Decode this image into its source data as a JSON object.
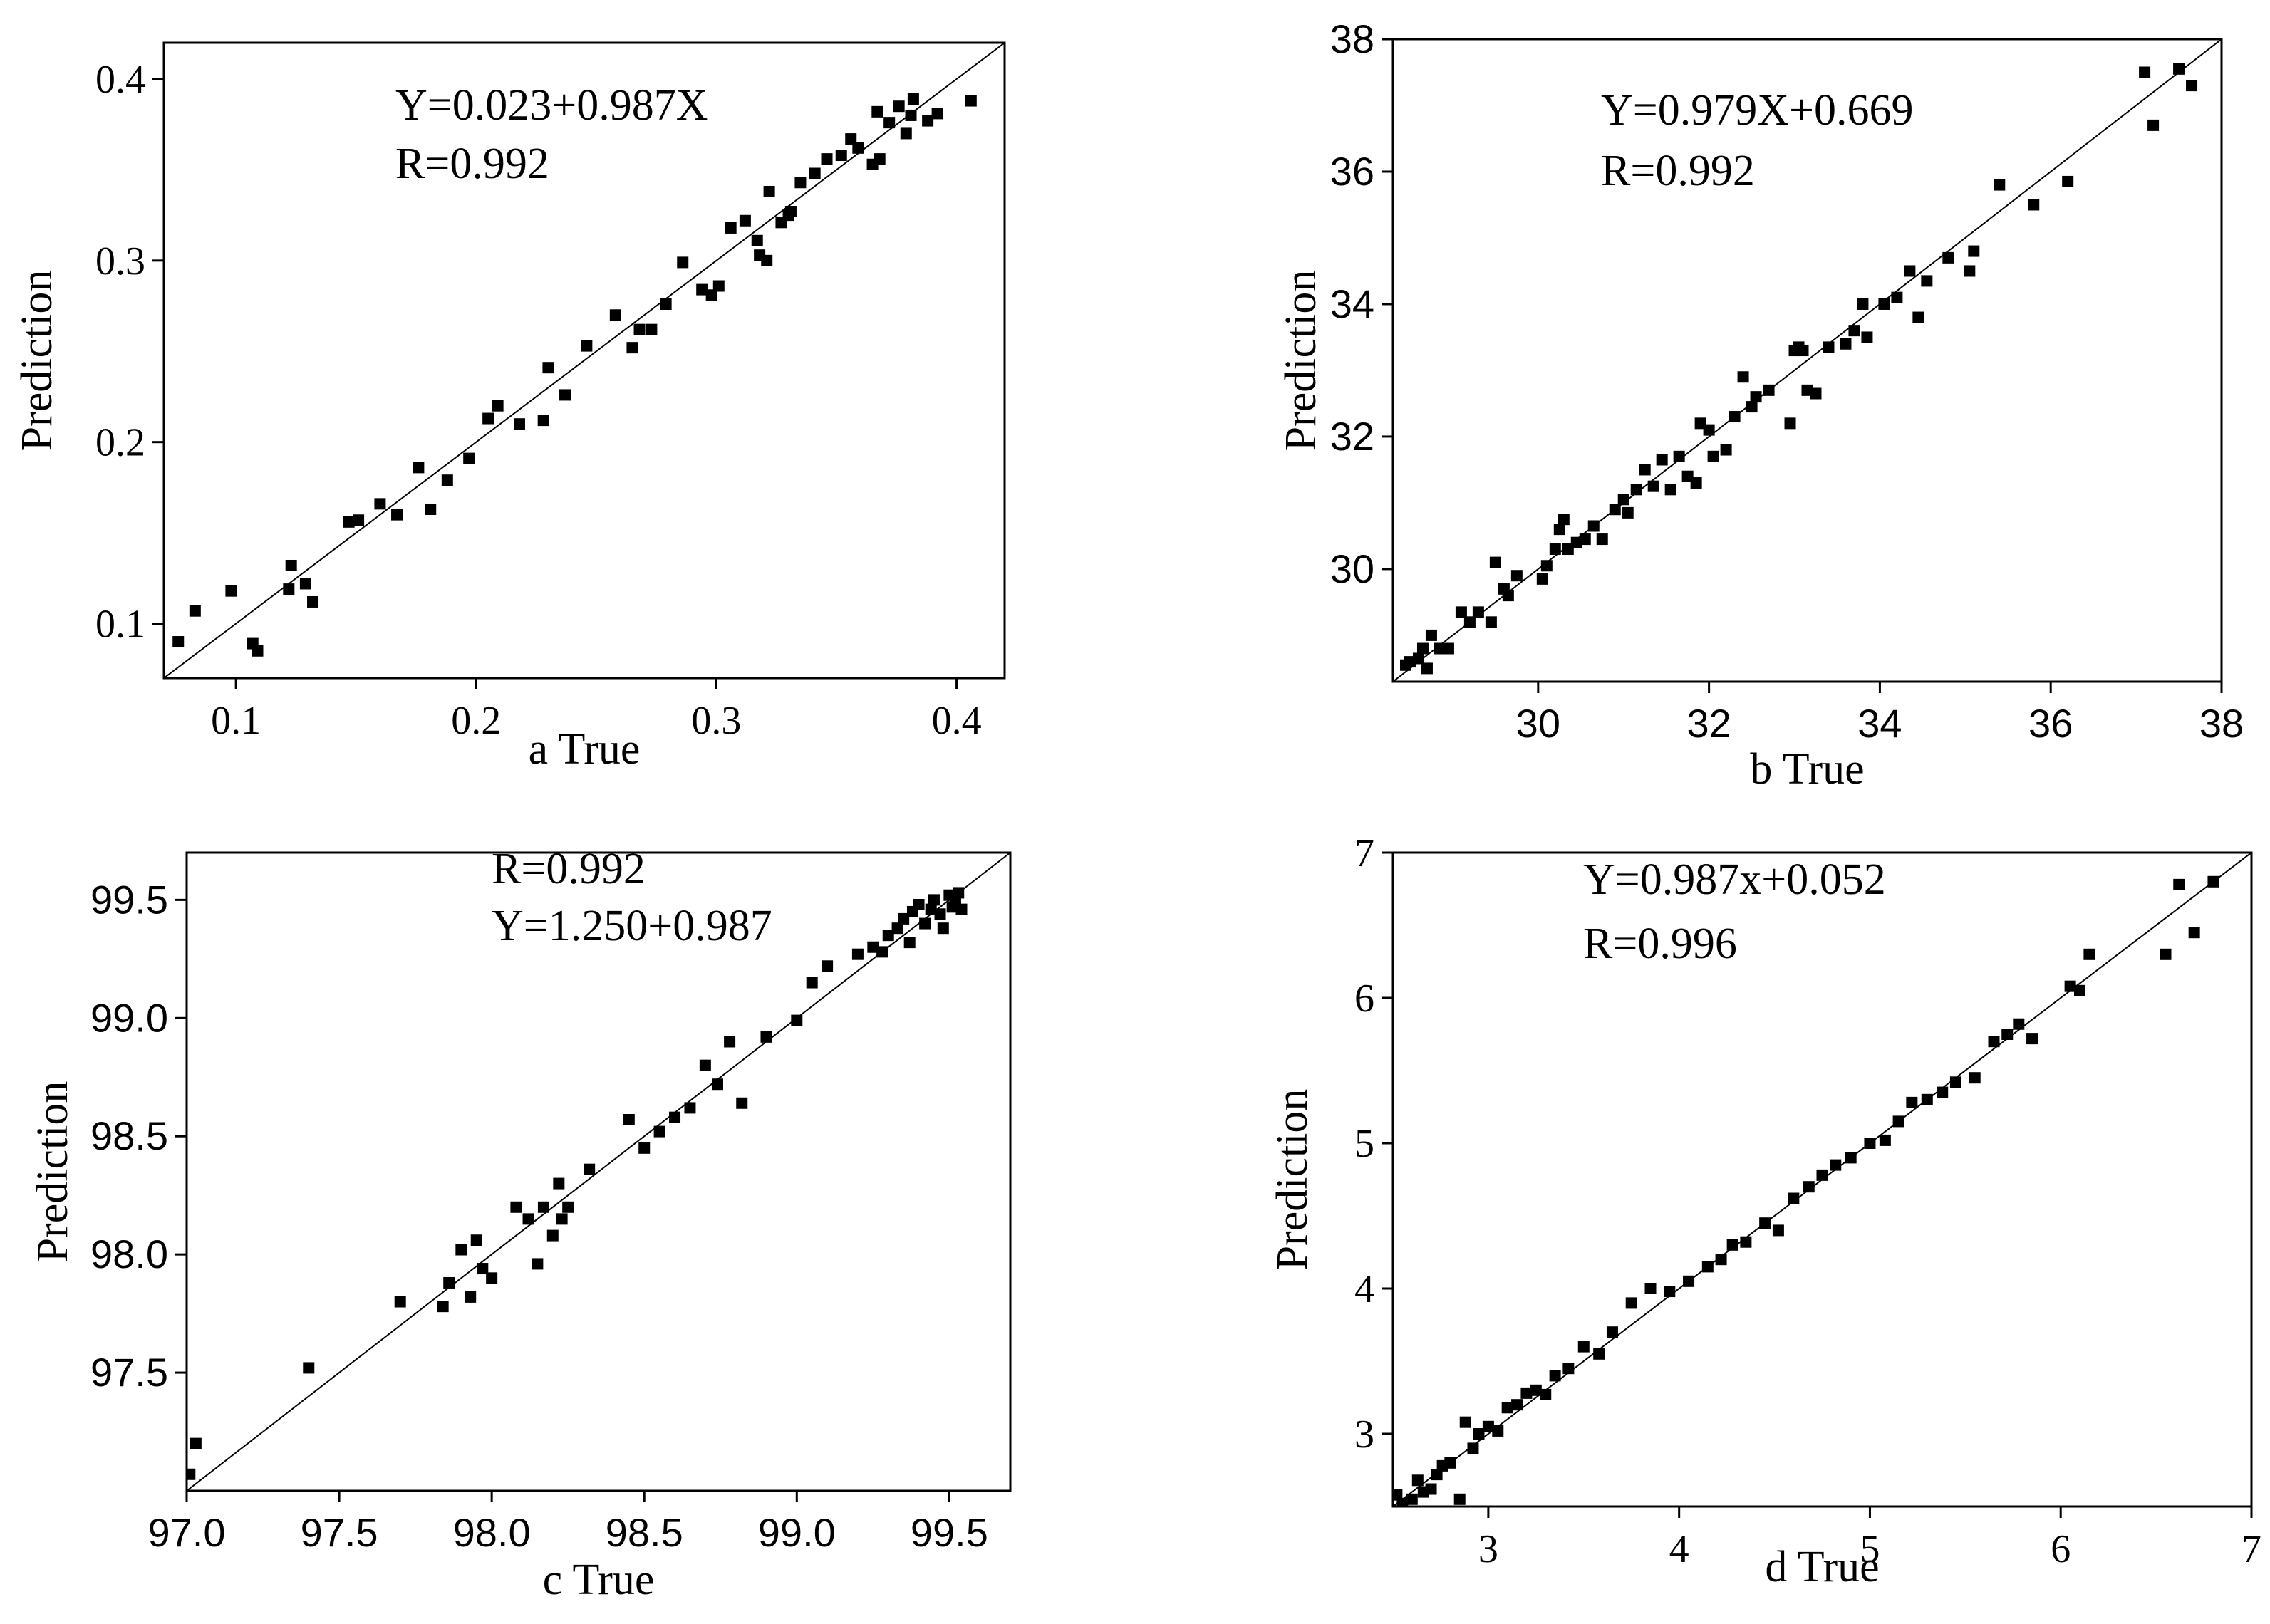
{
  "chart_data": [
    {
      "id": "a",
      "type": "scatter",
      "xlabel": "a True",
      "ylabel": "Prediction",
      "xlim": [
        0.07,
        0.42
      ],
      "ylim": [
        0.07,
        0.42
      ],
      "xticks": [
        0.1,
        0.2,
        0.3,
        0.4
      ],
      "yticks": [
        0.1,
        0.2,
        0.3,
        0.4
      ],
      "xtick_labels": [
        "0.1",
        "0.2",
        "0.3",
        "0.4"
      ],
      "ytick_labels": [
        "0.1",
        "0.2",
        "0.3",
        "0.4"
      ],
      "annotations": [
        "Y=0.023+0.987X",
        "R=0.992"
      ],
      "fit_line": {
        "intercept": 0.0,
        "slope": 1.0
      },
      "x": [
        0.076,
        0.083,
        0.098,
        0.107,
        0.109,
        0.122,
        0.123,
        0.129,
        0.132,
        0.147,
        0.151,
        0.16,
        0.167,
        0.176,
        0.181,
        0.188,
        0.197,
        0.205,
        0.209,
        0.218,
        0.228,
        0.23,
        0.237,
        0.246,
        0.258,
        0.265,
        0.268,
        0.273,
        0.279,
        0.286,
        0.294,
        0.298,
        0.301,
        0.306,
        0.312,
        0.317,
        0.318,
        0.321,
        0.322,
        0.327,
        0.33,
        0.331,
        0.335,
        0.341,
        0.346,
        0.352,
        0.356,
        0.359,
        0.365,
        0.367,
        0.368,
        0.372,
        0.376,
        0.379,
        0.382,
        0.381,
        0.388,
        0.392,
        0.406
      ],
      "y": [
        0.09,
        0.107,
        0.118,
        0.089,
        0.085,
        0.119,
        0.132,
        0.122,
        0.112,
        0.156,
        0.157,
        0.166,
        0.16,
        0.186,
        0.163,
        0.179,
        0.191,
        0.213,
        0.22,
        0.21,
        0.212,
        0.241,
        0.226,
        0.253,
        0.27,
        0.252,
        0.262,
        0.262,
        0.276,
        0.299,
        0.284,
        0.281,
        0.286,
        0.318,
        0.322,
        0.311,
        0.303,
        0.3,
        0.338,
        0.321,
        0.325,
        0.327,
        0.343,
        0.348,
        0.356,
        0.358,
        0.367,
        0.362,
        0.353,
        0.382,
        0.356,
        0.376,
        0.385,
        0.37,
        0.389,
        0.38,
        0.377,
        0.381,
        0.388
      ]
    },
    {
      "id": "b",
      "type": "scatter",
      "xlabel": "b True",
      "ylabel": "Prediction",
      "xlim": [
        28.3,
        38.0
      ],
      "ylim": [
        28.3,
        38.0
      ],
      "xticks": [
        30,
        32,
        34,
        36,
        38
      ],
      "yticks": [
        30,
        32,
        34,
        36,
        38
      ],
      "xtick_labels": [
        "30",
        "32",
        "34",
        "36",
        "38"
      ],
      "ytick_labels": [
        "30",
        "32",
        "34",
        "36",
        "38"
      ],
      "annotations": [
        "Y=0.979X+0.669",
        "R=0.992"
      ],
      "fit_line": {
        "intercept": 0.0,
        "slope": 1.0
      },
      "x": [
        28.45,
        28.5,
        28.6,
        28.65,
        28.7,
        28.75,
        28.85,
        28.95,
        29.1,
        29.2,
        29.3,
        29.45,
        29.5,
        29.6,
        29.65,
        29.75,
        30.05,
        30.1,
        30.2,
        30.25,
        30.3,
        30.35,
        30.45,
        30.55,
        30.65,
        30.75,
        30.9,
        31.0,
        31.05,
        31.15,
        31.25,
        31.35,
        31.45,
        31.55,
        31.65,
        31.75,
        31.85,
        31.9,
        32.0,
        32.05,
        32.2,
        32.3,
        32.4,
        32.5,
        32.55,
        32.7,
        32.95,
        33.0,
        33.05,
        33.1,
        33.15,
        33.25,
        33.4,
        33.6,
        33.7,
        33.8,
        33.85,
        34.05,
        34.2,
        34.35,
        34.45,
        34.55,
        34.8,
        35.05,
        35.1,
        35.4,
        35.8,
        36.2,
        37.1,
        37.2,
        37.5,
        37.65
      ],
      "y": [
        28.55,
        28.6,
        28.65,
        28.8,
        28.5,
        29.0,
        28.8,
        28.8,
        29.35,
        29.2,
        29.35,
        29.2,
        30.1,
        29.7,
        29.6,
        29.9,
        29.85,
        30.05,
        30.3,
        30.6,
        30.75,
        30.3,
        30.4,
        30.45,
        30.65,
        30.45,
        30.9,
        31.05,
        30.85,
        31.2,
        31.5,
        31.25,
        31.65,
        31.2,
        31.7,
        31.4,
        31.3,
        32.2,
        32.1,
        31.7,
        31.8,
        32.3,
        32.9,
        32.45,
        32.6,
        32.7,
        32.2,
        33.3,
        33.35,
        33.3,
        32.7,
        32.65,
        33.35,
        33.4,
        33.6,
        34.0,
        33.5,
        34.0,
        34.1,
        34.5,
        33.8,
        34.35,
        34.7,
        34.5,
        34.8,
        35.8,
        35.5,
        35.85,
        37.5,
        36.7,
        37.55,
        37.3
      ]
    },
    {
      "id": "c",
      "type": "scatter",
      "xlabel": "c True",
      "ylabel": "Prediction",
      "xlim": [
        97.0,
        99.7
      ],
      "ylim": [
        97.0,
        99.7
      ],
      "xticks": [
        97.0,
        97.5,
        98.0,
        98.5,
        99.0,
        99.5
      ],
      "yticks": [
        97.5,
        98.0,
        98.5,
        99.0,
        99.5
      ],
      "xtick_labels": [
        "97.0",
        "97.5",
        "98.0",
        "98.5",
        "99.0",
        "99.5"
      ],
      "ytick_labels": [
        "97.5",
        "98.0",
        "98.5",
        "99.0",
        "99.5"
      ],
      "annotations": [
        "R=0.992",
        "Y=1.250+0.987"
      ],
      "fit_line": {
        "intercept": 0.0,
        "slope": 1.0
      },
      "x": [
        97.01,
        97.03,
        97.4,
        97.7,
        97.84,
        97.86,
        97.9,
        97.93,
        97.95,
        97.97,
        98.0,
        98.08,
        98.12,
        98.15,
        98.17,
        98.2,
        98.22,
        98.23,
        98.25,
        98.32,
        98.45,
        98.5,
        98.55,
        98.6,
        98.65,
        98.7,
        98.74,
        98.78,
        98.82,
        98.9,
        99.0,
        99.05,
        99.1,
        99.2,
        99.25,
        99.28,
        99.3,
        99.33,
        99.35,
        99.37,
        99.38,
        99.4,
        99.42,
        99.44,
        99.45,
        99.47,
        99.48,
        99.5,
        99.51,
        99.52,
        99.53,
        99.54
      ],
      "y": [
        97.07,
        97.2,
        97.52,
        97.8,
        97.78,
        97.88,
        98.02,
        97.82,
        98.06,
        97.94,
        97.9,
        98.2,
        98.15,
        97.96,
        98.2,
        98.08,
        98.3,
        98.15,
        98.2,
        98.36,
        98.57,
        98.45,
        98.52,
        98.58,
        98.62,
        98.8,
        98.72,
        98.9,
        98.64,
        98.92,
        98.99,
        99.15,
        99.22,
        99.27,
        99.3,
        99.28,
        99.35,
        99.38,
        99.42,
        99.32,
        99.45,
        99.48,
        99.4,
        99.46,
        99.5,
        99.44,
        99.38,
        99.52,
        99.47,
        99.49,
        99.53,
        99.46
      ]
    },
    {
      "id": "d",
      "type": "scatter",
      "xlabel": "d True",
      "ylabel": "Prediction",
      "xlim": [
        2.5,
        7.0
      ],
      "ylim": [
        2.5,
        7.0
      ],
      "xticks": [
        3,
        4,
        5,
        6,
        7
      ],
      "yticks": [
        3,
        4,
        5,
        6,
        7
      ],
      "xtick_labels": [
        "3",
        "4",
        "5",
        "6",
        "7"
      ],
      "ytick_labels": [
        "3",
        "4",
        "5",
        "6",
        "7"
      ],
      "annotations": [
        "Y=0.987x+0.052",
        "R=0.996"
      ],
      "fit_line": {
        "intercept": 0.0,
        "slope": 1.0
      },
      "x": [
        2.52,
        2.55,
        2.6,
        2.63,
        2.66,
        2.7,
        2.73,
        2.76,
        2.8,
        2.85,
        2.88,
        2.92,
        2.95,
        3.0,
        3.05,
        3.1,
        3.15,
        3.2,
        3.25,
        3.3,
        3.35,
        3.42,
        3.5,
        3.58,
        3.65,
        3.75,
        3.85,
        3.95,
        4.05,
        4.15,
        4.22,
        4.28,
        4.35,
        4.45,
        4.52,
        4.6,
        4.68,
        4.75,
        4.82,
        4.9,
        5.0,
        5.08,
        5.15,
        5.22,
        5.3,
        5.38,
        5.45,
        5.55,
        5.65,
        5.72,
        5.78,
        5.85,
        6.05,
        6.1,
        6.15,
        6.55,
        6.62,
        6.7,
        6.8
      ],
      "y": [
        2.58,
        2.52,
        2.55,
        2.68,
        2.6,
        2.62,
        2.72,
        2.78,
        2.8,
        2.55,
        3.08,
        2.9,
        3.0,
        3.05,
        3.02,
        3.18,
        3.2,
        3.28,
        3.3,
        3.27,
        3.4,
        3.45,
        3.6,
        3.55,
        3.7,
        3.9,
        4.0,
        3.98,
        4.05,
        4.15,
        4.2,
        4.3,
        4.32,
        4.45,
        4.4,
        4.62,
        4.7,
        4.78,
        4.85,
        4.9,
        5.0,
        5.02,
        5.15,
        5.28,
        5.3,
        5.35,
        5.42,
        5.45,
        5.7,
        5.75,
        5.82,
        5.72,
        6.08,
        6.05,
        6.3,
        6.3,
        6.78,
        6.45,
        6.8
      ]
    }
  ]
}
